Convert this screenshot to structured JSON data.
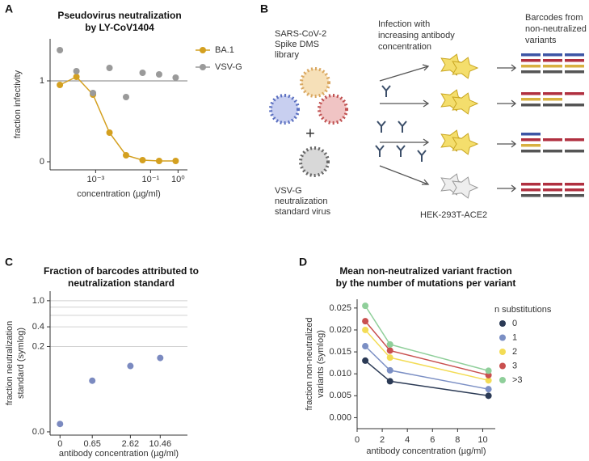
{
  "panel_labels": [
    "A",
    "B",
    "C",
    "D"
  ],
  "diagram": {
    "library": [
      "SARS-CoV-2",
      "Spike DMS",
      "library"
    ],
    "plus": "+",
    "standard": [
      "VSV-G",
      "neutralization",
      "standard virus"
    ],
    "infection": [
      "Infection with",
      "increasing antibody",
      "concentration"
    ],
    "barcodes": [
      "Barcodes from",
      "non-neutralized",
      "variants"
    ],
    "cells": "HEK-293T-ACE2"
  },
  "chart_data": [
    {
      "type": "line",
      "title": [
        "Pseudovirus neutralization",
        "by LY-CoV1404"
      ],
      "xlabel": "concentration (µg/ml)",
      "ylabel": [
        "fraction infectivity"
      ],
      "xscale": "log",
      "x": [
        5e-05,
        0.0002,
        0.0008,
        0.0032,
        0.0128,
        0.0512,
        0.2048,
        0.8192
      ],
      "xlim": [
        2.2e-05,
        2.2
      ],
      "xticks": [
        {
          "value": 0.001,
          "label": "10⁻³"
        },
        {
          "value": 0.1,
          "label": "10⁻¹"
        },
        {
          "value": 1,
          "label": "10⁰"
        }
      ],
      "ylim": [
        -0.1,
        1.52
      ],
      "yticks": [
        0,
        1
      ],
      "reference_line": 1,
      "legend": "right",
      "series": [
        {
          "name": "BA.1",
          "color": "#d4a020",
          "connect": true,
          "values": [
            0.95,
            1.05,
            0.83,
            0.36,
            0.08,
            0.02,
            0.01,
            0.01
          ]
        },
        {
          "name": "VSV-G",
          "color": "#9a9a9a",
          "connect": false,
          "values": [
            1.38,
            1.12,
            0.85,
            1.16,
            0.8,
            1.1,
            1.08,
            1.04
          ]
        }
      ]
    },
    {
      "type": "scatter",
      "title": [
        "Fraction of barcodes attributed to",
        "neutralization standard"
      ],
      "xlabel": "antibody concentration (µg/ml)",
      "ylabel": [
        "fraction neutralization",
        "standard (symlog)"
      ],
      "xscale": "symlog",
      "xlinthresh": 1,
      "yscale": "symlog",
      "ylinthresh": 0.1,
      "x": [
        0,
        0.65,
        2.62,
        10.46
      ],
      "values": [
        0.012,
        0.078,
        0.101,
        0.134
      ],
      "color": "#7b8ac0",
      "xlim": [
        -0.2,
        37
      ],
      "xticks": [
        0,
        0.65,
        2.62,
        10.46
      ],
      "ylim": [
        -0.005,
        1.4
      ],
      "yticks": [
        {
          "value": 0,
          "label": "0.0"
        },
        0.2,
        0.4,
        {
          "value": 1,
          "label": "1.0"
        }
      ],
      "grid_lines": [
        0.2,
        0.4,
        0.6,
        0.8,
        1
      ]
    },
    {
      "type": "line",
      "title": [
        "Mean non-neutralized variant fraction",
        "by the number of mutations per variant"
      ],
      "xlabel": "antibody concentration (µg/ml)",
      "ylabel": [
        "fraction non-neutralized",
        "variants (symlog)"
      ],
      "x": [
        0.65,
        2.62,
        10.46
      ],
      "xlim": [
        0,
        11
      ],
      "xticks": [
        0,
        2,
        4,
        6,
        8,
        10
      ],
      "ylim": [
        -0.0025,
        0.027
      ],
      "yticks": [
        {
          "value": 0,
          "label": "0.000"
        },
        {
          "value": 0.005,
          "label": "0.005"
        },
        {
          "value": 0.01,
          "label": "0.010"
        },
        {
          "value": 0.015,
          "label": "0.015"
        },
        {
          "value": 0.02,
          "label": "0.020"
        },
        {
          "value": 0.025,
          "label": "0.025"
        }
      ],
      "legend": "right",
      "legend_title": "n substitutions",
      "series": [
        {
          "name": "0",
          "color": "#2b3a55",
          "connect": true,
          "values": [
            0.013,
            0.0083,
            0.005
          ]
        },
        {
          "name": "1",
          "color": "#7b8fc4",
          "connect": true,
          "values": [
            0.0163,
            0.0108,
            0.0065
          ]
        },
        {
          "name": "2",
          "color": "#f3dc55",
          "connect": true,
          "values": [
            0.02,
            0.0137,
            0.0085
          ]
        },
        {
          "name": "3",
          "color": "#c9504f",
          "connect": true,
          "values": [
            0.022,
            0.0153,
            0.0097
          ]
        },
        {
          "name": ">3",
          "color": "#8fcf9a",
          "connect": true,
          "values": [
            0.0255,
            0.0167,
            0.0107
          ]
        }
      ]
    }
  ]
}
